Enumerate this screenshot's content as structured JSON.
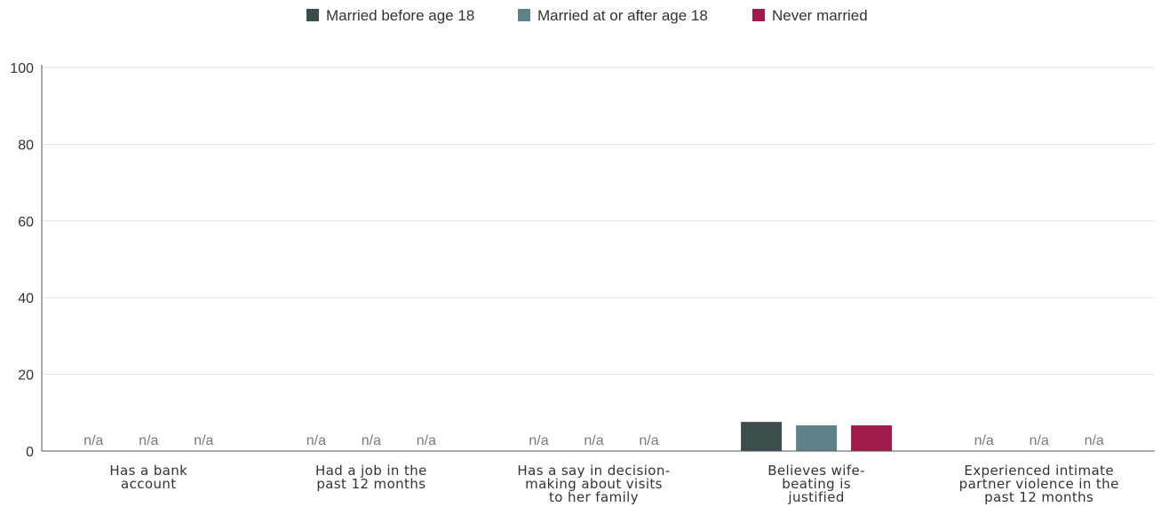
{
  "chart_data": {
    "type": "bar",
    "categories": [
      [
        "Has a bank",
        "account"
      ],
      [
        "Had a job in the",
        "past 12 months"
      ],
      [
        "Has a say in decision-",
        "making about visits",
        "to her family"
      ],
      [
        "Believes wife-",
        "beating is",
        "justified"
      ],
      [
        "Experienced intimate",
        "partner violence in the",
        "past 12 months"
      ]
    ],
    "series": [
      {
        "name": "Married before age 18",
        "color": "#3d4c4d",
        "values": [
          null,
          null,
          null,
          7.6,
          null
        ]
      },
      {
        "name": "Married at or after age 18",
        "color": "#5f7f89",
        "values": [
          null,
          null,
          null,
          6.7,
          null
        ]
      },
      {
        "name": "Never married",
        "color": "#9e1b4b",
        "values": [
          null,
          null,
          null,
          6.7,
          null
        ]
      }
    ],
    "missing_label": "n/a",
    "ylim": [
      0,
      100
    ],
    "yticks": [
      "0",
      "20",
      "40",
      "60",
      "80",
      "100"
    ],
    "grid": true,
    "legend_position": "top-center"
  }
}
